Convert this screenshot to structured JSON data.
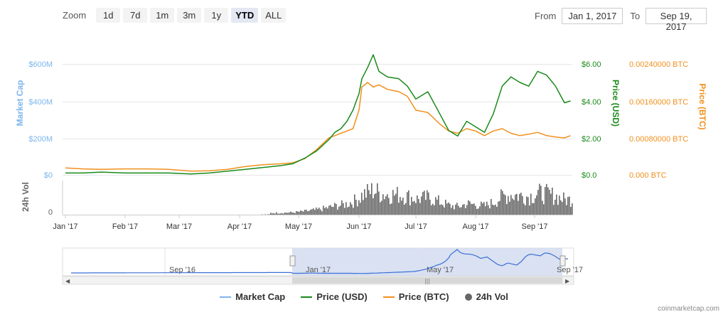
{
  "zoom": {
    "label": "Zoom",
    "buttons": [
      {
        "label": "1d",
        "active": false
      },
      {
        "label": "7d",
        "active": false
      },
      {
        "label": "1m",
        "active": false
      },
      {
        "label": "3m",
        "active": false
      },
      {
        "label": "1y",
        "active": false
      },
      {
        "label": "YTD",
        "active": true
      },
      {
        "label": "ALL",
        "active": false
      }
    ]
  },
  "range": {
    "from_label": "From",
    "from_value": "Jan 1, 2017",
    "to_label": "To",
    "to_value": "Sep 19, 2017"
  },
  "legend": [
    {
      "label": "Market Cap",
      "color": "#7cb5ec",
      "kind": "line"
    },
    {
      "label": "Price (USD)",
      "color": "#1a8a1a",
      "kind": "line"
    },
    {
      "label": "Price (BTC)",
      "color": "#f0901d",
      "kind": "line"
    },
    {
      "label": "24h Vol",
      "color": "#666666",
      "kind": "dot"
    }
  ],
  "credit": "coinmarketcap.com",
  "chart_data": {
    "type": "line",
    "x_ticks": [
      "Jan '17",
      "Feb '17",
      "Mar '17",
      "Apr '17",
      "May '17",
      "Jun '17",
      "Jul '17",
      "Aug '17",
      "Sep '17"
    ],
    "axes": {
      "market_cap": {
        "title": "Market Cap",
        "ticks": [
          "$0",
          "$200M",
          "$400M",
          "$600M"
        ],
        "range": [
          0,
          600
        ],
        "unit": "M USD",
        "color": "#7cb5ec"
      },
      "price_usd": {
        "title": "Price (USD)",
        "ticks": [
          "$0.0",
          "$2.00",
          "$4.00",
          "$6.00"
        ],
        "range": [
          0,
          6
        ],
        "color": "#1a8a1a"
      },
      "price_btc": {
        "title": "Price (BTC)",
        "ticks": [
          "0.000 BTC",
          "0.00080000 BTC",
          "0.00160000 BTC",
          "0.00240000 BTC"
        ],
        "range": [
          0,
          0.0024
        ],
        "color": "#f0901d"
      },
      "volume": {
        "title": "24h Vol",
        "ticks": [
          "0"
        ]
      }
    },
    "series": [
      {
        "name": "Price (USD)",
        "axis": "price_usd",
        "x": [
          0,
          0.3,
          0.6,
          1,
          1.4,
          1.8,
          2.2,
          2.5,
          2.8,
          3.1,
          3.4,
          3.7,
          3.9,
          4.1,
          4.3,
          4.5,
          4.6,
          4.7,
          4.8,
          4.9,
          5.0,
          5.05,
          5.15,
          5.25,
          5.35,
          5.5,
          5.7,
          5.85,
          6.0,
          6.2,
          6.4,
          6.55,
          6.7,
          6.85,
          7.0,
          7.15,
          7.3,
          7.45,
          7.6,
          7.75,
          7.9,
          8.05,
          8.2,
          8.35,
          8.5,
          8.6
        ],
        "y": [
          0.1,
          0.1,
          0.15,
          0.1,
          0.1,
          0.1,
          0.05,
          0.1,
          0.2,
          0.3,
          0.4,
          0.5,
          0.6,
          0.9,
          1.3,
          1.9,
          2.3,
          2.5,
          2.9,
          3.5,
          4.4,
          5.2,
          5.8,
          6.5,
          5.6,
          5.3,
          5.2,
          4.8,
          4.1,
          4.5,
          3.3,
          2.4,
          2.1,
          2.9,
          2.6,
          2.3,
          3.3,
          4.8,
          5.3,
          5.0,
          4.8,
          5.6,
          5.4,
          4.8,
          3.9,
          4.0
        ]
      },
      {
        "name": "Price (BTC)",
        "axis": "price_btc",
        "x": [
          0,
          0.3,
          0.6,
          1,
          1.4,
          1.8,
          2.2,
          2.5,
          2.8,
          3.1,
          3.4,
          3.7,
          3.9,
          4.1,
          4.3,
          4.5,
          4.6,
          4.7,
          4.8,
          4.9,
          5.0,
          5.05,
          5.15,
          5.25,
          5.35,
          5.5,
          5.7,
          5.85,
          6.0,
          6.2,
          6.4,
          6.55,
          6.7,
          6.85,
          7.0,
          7.15,
          7.3,
          7.45,
          7.6,
          7.75,
          7.9,
          8.05,
          8.2,
          8.35,
          8.5,
          8.6
        ],
        "y": [
          0.00015,
          0.00013,
          0.00012,
          0.00013,
          0.00013,
          0.00012,
          8e-05,
          9e-05,
          0.00012,
          0.00018,
          0.00022,
          0.00024,
          0.00026,
          0.00035,
          0.00055,
          0.0008,
          0.00085,
          0.0009,
          0.00095,
          0.001,
          0.0014,
          0.0019,
          0.002,
          0.0019,
          0.00195,
          0.00185,
          0.0018,
          0.0017,
          0.0014,
          0.00135,
          0.0011,
          0.00095,
          0.0009,
          0.001,
          0.00095,
          0.00085,
          0.00095,
          0.001,
          0.0009,
          0.00085,
          0.00088,
          0.00092,
          0.00085,
          0.00082,
          0.0008,
          0.00085
        ]
      }
    ],
    "volume_note": "gray bars, relative scale",
    "navigator": {
      "labels": [
        "Sep '16",
        "Jan '17",
        "May '17",
        "Sep '17"
      ]
    },
    "grid": true,
    "legend_position": "bottom-center"
  }
}
